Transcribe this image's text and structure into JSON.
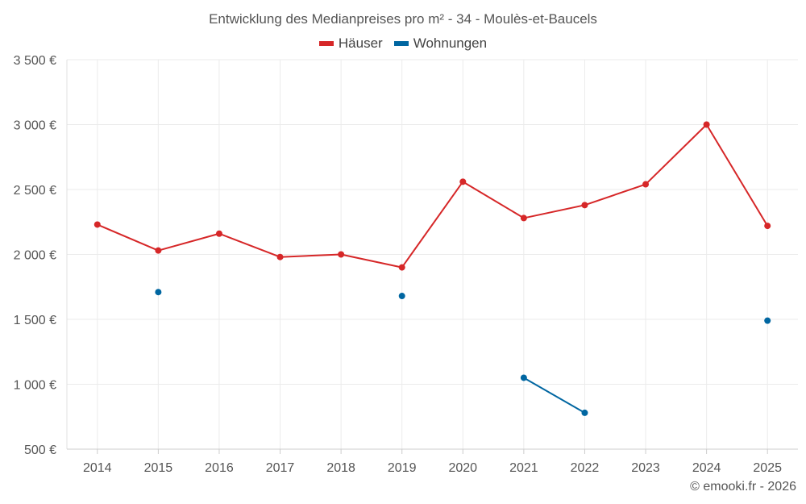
{
  "chart_data": {
    "type": "line",
    "title": "Entwicklung des Medianpreises pro m² - 34 - Moulès-et-Baucels",
    "xlabel": "",
    "ylabel": "",
    "categories": [
      "2014",
      "2015",
      "2016",
      "2017",
      "2018",
      "2019",
      "2020",
      "2021",
      "2022",
      "2023",
      "2024",
      "2025"
    ],
    "ylim": [
      500,
      3500
    ],
    "yticks": [
      500,
      1000,
      1500,
      2000,
      2500,
      3000,
      3500
    ],
    "ytick_labels": [
      "500 €",
      "1 000 €",
      "1 500 €",
      "2 000 €",
      "2 500 €",
      "3 000 €",
      "3 500 €"
    ],
    "grid": true,
    "legend_position": "top-center",
    "series": [
      {
        "name": "Häuser",
        "color": "#d62728",
        "values": [
          2230,
          2030,
          2160,
          1980,
          2000,
          1900,
          2560,
          2280,
          2380,
          2540,
          3000,
          2220
        ]
      },
      {
        "name": "Wohnungen",
        "color": "#0066a1",
        "values": [
          null,
          1710,
          null,
          null,
          null,
          1680,
          null,
          1050,
          780,
          null,
          null,
          1490
        ]
      }
    ]
  },
  "credit": "© emooki.fr - 2026"
}
